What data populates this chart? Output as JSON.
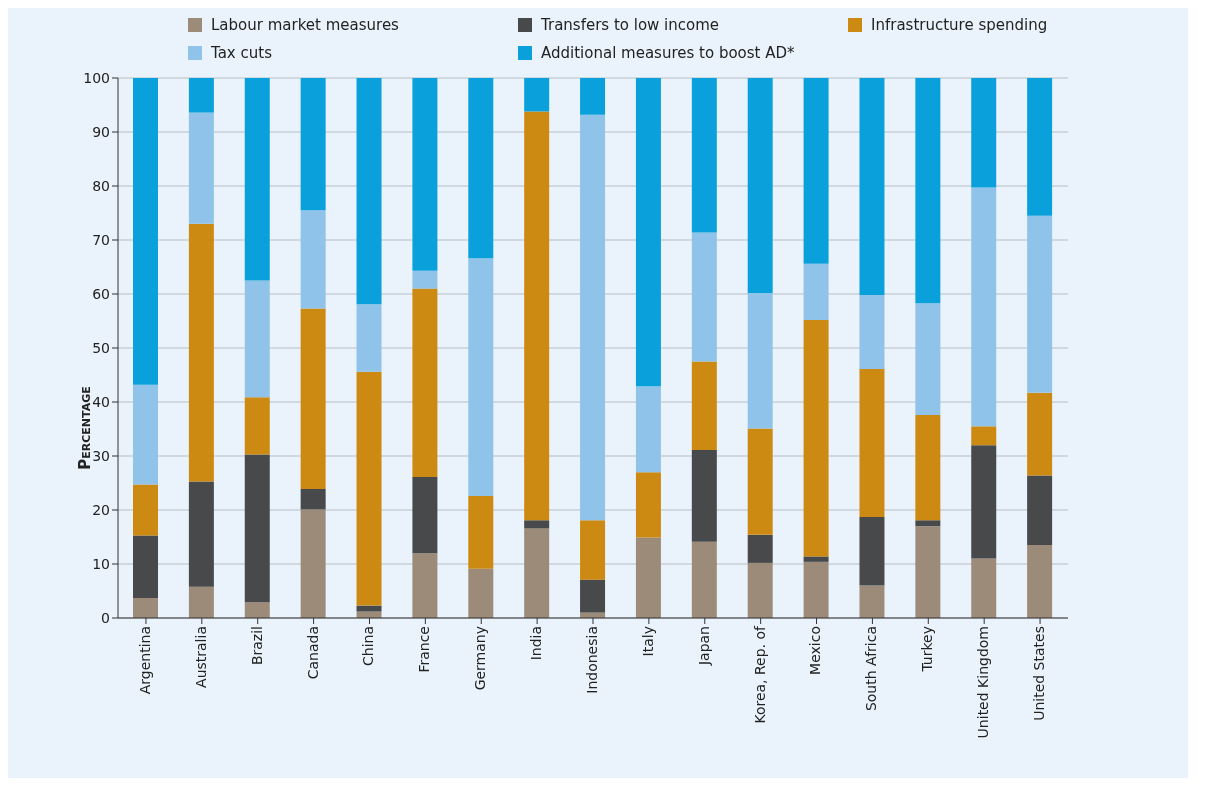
{
  "chart_data": {
    "type": "bar",
    "stacked": true,
    "ylabel": "Percentage",
    "categories": [
      "Argentina",
      "Australia",
      "Brazil",
      "Canada",
      "China",
      "France",
      "Germany",
      "India",
      "Indonesia",
      "Italy",
      "Japan",
      "Korea, Rep. of",
      "Mexico",
      "South Africa",
      "Turkey",
      "United Kingdom",
      "United States"
    ],
    "series": [
      {
        "name": "Labour market measures",
        "color": "#9b8b78",
        "values": [
          3.7,
          5.8,
          2.9,
          20.1,
          1.2,
          12.0,
          9.1,
          16.6,
          1.0,
          14.9,
          14.1,
          10.2,
          10.4,
          6.0,
          17.0,
          11.0,
          13.5
        ]
      },
      {
        "name": "Transfers to low income",
        "color": "#48494b",
        "values": [
          11.6,
          19.5,
          27.4,
          3.8,
          1.1,
          14.1,
          0,
          1.5,
          6.1,
          0,
          17.0,
          5.2,
          1.0,
          12.7,
          1.1,
          21.0,
          12.9
        ]
      },
      {
        "name": "Infrastructure spending",
        "color": "#cc8a12",
        "values": [
          9.4,
          47.7,
          10.6,
          33.4,
          43.3,
          34.9,
          13.5,
          75.7,
          11.0,
          12.1,
          16.4,
          19.7,
          43.8,
          27.4,
          19.5,
          3.5,
          15.3
        ]
      },
      {
        "name": "Tax cuts",
        "color": "#90c3ea",
        "values": [
          18.5,
          20.6,
          21.6,
          18.2,
          12.5,
          3.3,
          44.0,
          0,
          75.1,
          15.9,
          23.9,
          25.1,
          10.4,
          13.7,
          20.7,
          44.2,
          32.8
        ]
      },
      {
        "name": "Additional measures to boost AD*",
        "color": "#0aa0dc",
        "values": [
          56.8,
          6.4,
          37.5,
          24.5,
          41.9,
          35.7,
          33.4,
          6.2,
          6.8,
          57.1,
          28.6,
          39.8,
          34.4,
          40.2,
          41.7,
          20.3,
          25.5
        ]
      }
    ],
    "ylim": [
      0,
      100
    ],
    "yticks": [
      0,
      10,
      20,
      30,
      40,
      50,
      60,
      70,
      80,
      90,
      100
    ],
    "grid": "y",
    "legend": "top"
  }
}
